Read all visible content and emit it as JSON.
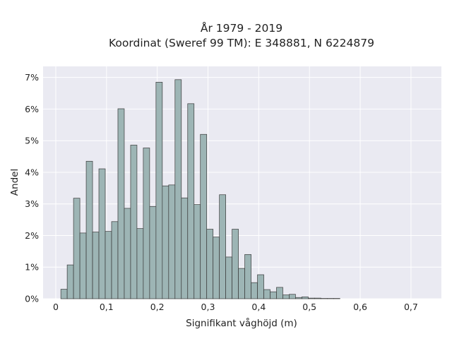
{
  "chart_data": {
    "type": "bar",
    "title": "År 1979 - 2019",
    "subtitle": "Koordinat (Sweref 99 TM): E 348881, N 6224879",
    "xlabel": "Signifikant våghöjd (m)",
    "ylabel": "Andel",
    "xlim": [
      -0.025,
      0.76
    ],
    "ylim": [
      0,
      7.35
    ],
    "grid": true,
    "x_ticks": [
      0,
      0.1,
      0.2,
      0.3,
      0.4,
      0.5,
      0.6,
      0.7
    ],
    "x_tick_labels": [
      "0",
      "0,1",
      "0,2",
      "0,3",
      "0,4",
      "0,5",
      "0,6",
      "0,7"
    ],
    "y_ticks": [
      0,
      1,
      2,
      3,
      4,
      5,
      6,
      7
    ],
    "y_tick_labels": [
      "0%",
      "1%",
      "2%",
      "3%",
      "4%",
      "5%",
      "6%",
      "7%"
    ],
    "bin_start": 0.01,
    "bin_width": 0.0125,
    "values": [
      0.3,
      1.07,
      3.18,
      2.08,
      4.35,
      2.11,
      4.11,
      2.13,
      2.44,
      6.01,
      2.86,
      4.86,
      2.22,
      4.77,
      2.92,
      6.85,
      3.57,
      3.6,
      6.93,
      3.19,
      6.17,
      2.98,
      5.2,
      2.2,
      1.95,
      3.29,
      1.32,
      2.2,
      0.96,
      1.4,
      0.51,
      0.76,
      0.29,
      0.22,
      0.36,
      0.12,
      0.14,
      0.04,
      0.06,
      0.02,
      0.02,
      0.01,
      0.01,
      0.01
    ],
    "bar_color": "#9db5b5",
    "edge_color": "#3a3a3a",
    "background_color": "#eaeaf2",
    "grid_color": "#ffffff"
  }
}
